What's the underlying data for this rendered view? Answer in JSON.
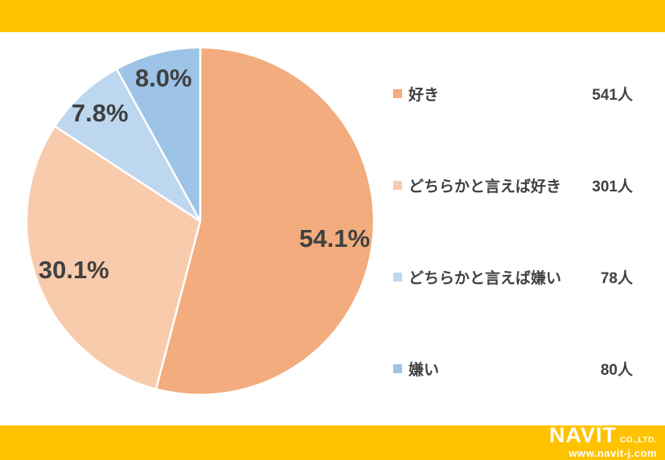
{
  "theme": {
    "band_color": "#FFC200",
    "background": "#FFFFFF",
    "text_color": "#404040"
  },
  "chart_data": {
    "type": "pie",
    "title": "",
    "categories": [
      "好き",
      "どちらかと言えば好き",
      "どちらかと言えば嫌い",
      "嫌い"
    ],
    "values": [
      54.1,
      30.1,
      7.8,
      8.0
    ],
    "slice_labels": [
      "54.1%",
      "30.1%",
      "7.8%",
      "8.0%"
    ],
    "counts": [
      "541人",
      "301人",
      "78人",
      "80人"
    ],
    "colors": [
      "#F2AC7D",
      "#F8CBAD",
      "#BDD7EE",
      "#9DC3E6"
    ],
    "start_angle_deg": 0,
    "direction": "clockwise",
    "legend_position": "right",
    "label_color": "#404040",
    "slice_border_color": "#FFFFFF"
  },
  "legend": {
    "items": [
      {
        "label": "好き",
        "count": "541人",
        "color": "#F2AC7D"
      },
      {
        "label": "どちらかと言えば好き",
        "count": "301人",
        "color": "#F8CBAD"
      },
      {
        "label": "どちらかと言えば嫌い",
        "count": "78人",
        "color": "#BDD7EE"
      },
      {
        "label": "嫌い",
        "count": "80人",
        "color": "#9DC3E6"
      }
    ]
  },
  "footer": {
    "brand": "NAVIT",
    "suffix": "CO.,LTD.",
    "website": "www.navit-j.com"
  }
}
